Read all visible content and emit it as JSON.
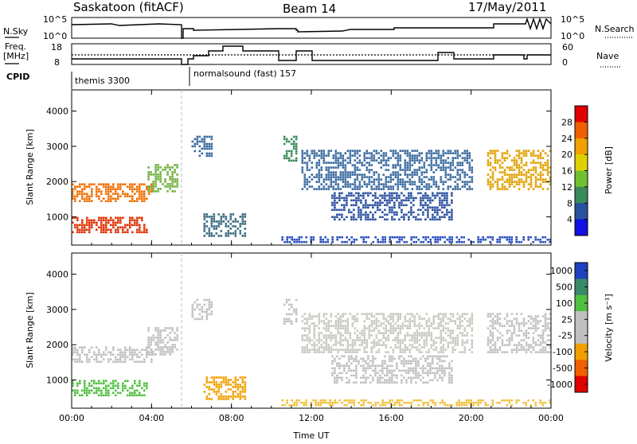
{
  "header": {
    "title": "Saskatoon (fitACF)",
    "beam": "Beam 14",
    "date": "17/May/2011"
  },
  "status_panels": {
    "nsky_label": "N.Sky",
    "nsearch_label": "N.Search",
    "nsky_ticks": [
      "10^5",
      "10^0"
    ],
    "nsearch_ticks": [
      "10^5",
      "10^0"
    ],
    "freq_label_line1": "Freq.",
    "freq_label_line2": "[MHz]",
    "freq_ticks": [
      "18",
      "8"
    ],
    "nave_label": "Nave",
    "nave_ticks": [
      "60",
      "0"
    ],
    "cpid_label": "CPID",
    "cpid_segments": [
      {
        "name": "themis 3300",
        "start_h": 0.0,
        "end_h": 5.55
      },
      {
        "name": "normalsound (fast) 157",
        "start_h": 5.95,
        "end_h": 24.0
      }
    ]
  },
  "chart_data": [
    {
      "type": "heatmap",
      "panel": "power",
      "ylabel": "Slant Range [km]",
      "y_ticks": [
        1000,
        2000,
        3000,
        4000
      ],
      "ylim": [
        200,
        4600
      ],
      "x_ticks": [
        "00:00",
        "04:00",
        "08:00",
        "12:00",
        "16:00",
        "20:00",
        "00:00"
      ],
      "xlim_hours": [
        0,
        24
      ],
      "colorbar": {
        "label": "Power [dB]",
        "ticks": [
          "28",
          "24",
          "20",
          "16",
          "12",
          "8",
          "4"
        ],
        "colors": [
          "#e00000",
          "#f06000",
          "#f0a000",
          "#e0d000",
          "#70c030",
          "#3a8a5a",
          "#2a50a0",
          "#1010e0"
        ]
      },
      "echo_bands": [
        {
          "t0": 0.0,
          "t1": 4.0,
          "r0": 1450,
          "r1": 1950,
          "color": "#f07000"
        },
        {
          "t0": 0.0,
          "t1": 3.8,
          "r0": 550,
          "r1": 1000,
          "color": "#e03000"
        },
        {
          "t0": 3.8,
          "t1": 5.3,
          "r0": 1700,
          "r1": 2500,
          "color": "#70b040"
        },
        {
          "t0": 6.0,
          "t1": 7.0,
          "r0": 2750,
          "r1": 3300,
          "color": "#3a6aa0"
        },
        {
          "t0": 6.6,
          "t1": 8.7,
          "r0": 450,
          "r1": 1100,
          "color": "#3a6a80"
        },
        {
          "t0": 10.6,
          "t1": 11.3,
          "r0": 2600,
          "r1": 3300,
          "color": "#3a8a5a"
        },
        {
          "t0": 11.5,
          "t1": 20.0,
          "r0": 1750,
          "r1": 2900,
          "color": "#3a6aa0"
        },
        {
          "t0": 13.0,
          "t1": 19.0,
          "r0": 900,
          "r1": 1700,
          "color": "#2a50a0"
        },
        {
          "t0": 20.8,
          "t1": 24.0,
          "r0": 1800,
          "r1": 2900,
          "color": "#e0a000"
        },
        {
          "t0": 10.5,
          "t1": 24.0,
          "r0": 250,
          "r1": 450,
          "color": "#2a50c0"
        }
      ]
    },
    {
      "type": "heatmap",
      "panel": "velocity",
      "ylabel": "Slant Range [km]",
      "y_ticks": [
        1000,
        2000,
        3000,
        4000
      ],
      "ylim": [
        200,
        4600
      ],
      "x_ticks": [
        "00:00",
        "04:00",
        "08:00",
        "12:00",
        "16:00",
        "20:00",
        "00:00"
      ],
      "xlabel": "Time UT",
      "xlim_hours": [
        0,
        24
      ],
      "colorbar": {
        "label": "Velocity [m s⁻¹]",
        "ticks": [
          "1000",
          "500",
          "100",
          "25",
          "-25",
          "-100",
          "-500",
          "-1000"
        ],
        "colors": [
          "#2040c0",
          "#3a8a6a",
          "#50c040",
          "#c0c0c0",
          "#c0c0c0",
          "#f0a000",
          "#f06000",
          "#e00000"
        ]
      },
      "echo_bands": [
        {
          "t0": 0.0,
          "t1": 4.0,
          "r0": 1500,
          "r1": 1950,
          "color": "#c0c0c0"
        },
        {
          "t0": 0.0,
          "t1": 3.8,
          "r0": 550,
          "r1": 1000,
          "color": "#50c040"
        },
        {
          "t0": 3.8,
          "t1": 5.3,
          "r0": 1700,
          "r1": 2500,
          "color": "#c0c0c0"
        },
        {
          "t0": 6.0,
          "t1": 7.0,
          "r0": 2750,
          "r1": 3300,
          "color": "#c0c0c0"
        },
        {
          "t0": 6.6,
          "t1": 8.7,
          "r0": 450,
          "r1": 1100,
          "color": "#f0a000"
        },
        {
          "t0": 10.6,
          "t1": 11.3,
          "r0": 2600,
          "r1": 3300,
          "color": "#c0c0c0"
        },
        {
          "t0": 11.5,
          "t1": 20.0,
          "r0": 1750,
          "r1": 2900,
          "color": "#c8c8c0"
        },
        {
          "t0": 13.0,
          "t1": 19.0,
          "r0": 900,
          "r1": 1700,
          "color": "#c0c0c0"
        },
        {
          "t0": 20.8,
          "t1": 24.0,
          "r0": 1800,
          "r1": 2900,
          "color": "#c0c0c0"
        },
        {
          "t0": 10.5,
          "t1": 24.0,
          "r0": 250,
          "r1": 450,
          "color": "#f0c040"
        }
      ]
    }
  ]
}
